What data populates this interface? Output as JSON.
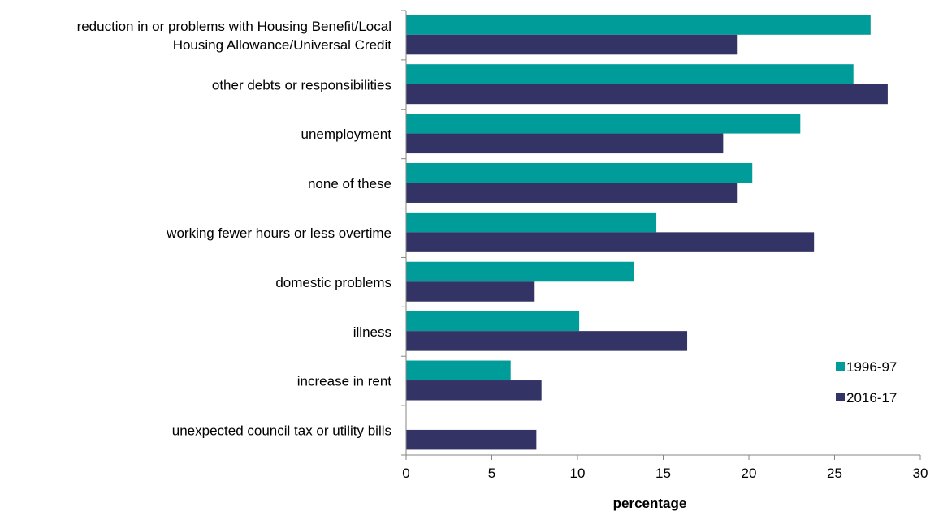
{
  "chart_data": {
    "type": "bar",
    "orientation": "horizontal",
    "title": "",
    "xlabel": "percentage",
    "ylabel": "",
    "xlim": [
      0,
      30
    ],
    "xticks": [
      0,
      5,
      10,
      15,
      20,
      25,
      30
    ],
    "grid": false,
    "legend_position": "bottom-right",
    "categories": [
      "reduction in or problems with Housing Benefit/Local Housing Allowance/Universal Credit",
      "other debts or responsibilities",
      "unemployment",
      "none of these",
      "working fewer hours or less overtime",
      "domestic problems",
      "illness",
      "increase in rent",
      "unexpected council tax or utility bills"
    ],
    "category_label_lines": [
      [
        "reduction in or problems with Housing Benefit/Local",
        "Housing Allowance/Universal Credit"
      ],
      [
        "other debts or responsibilities"
      ],
      [
        "unemployment"
      ],
      [
        "none of these"
      ],
      [
        "working fewer hours or less overtime"
      ],
      [
        "domestic problems"
      ],
      [
        "illness"
      ],
      [
        "increase in rent"
      ],
      [
        "unexpected council tax or utility bills"
      ]
    ],
    "series": [
      {
        "name": "1996-97",
        "color": "#009C99",
        "values": [
          27.1,
          26.1,
          23.0,
          20.2,
          14.6,
          13.3,
          10.1,
          6.1,
          null
        ]
      },
      {
        "name": "2016-17",
        "color": "#333366",
        "values": [
          19.3,
          28.1,
          18.5,
          19.3,
          23.8,
          7.5,
          16.4,
          7.9,
          7.6
        ]
      }
    ]
  }
}
